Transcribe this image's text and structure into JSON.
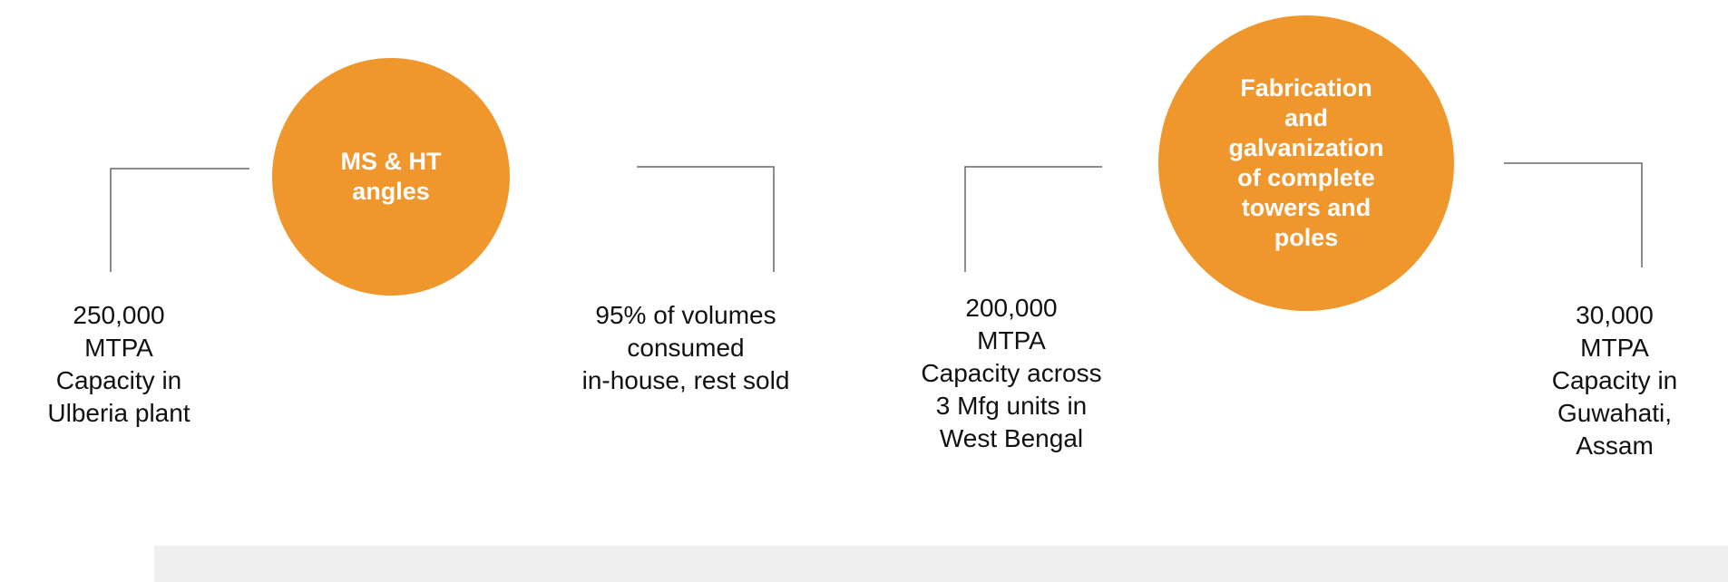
{
  "items": [
    {
      "circle": [
        "MS & HT",
        "angles"
      ],
      "left": [
        "250,000",
        "MTPA",
        "Capacity in",
        "Ulberia plant"
      ],
      "right": [
        "95% of volumes",
        "consumed",
        "in-house, rest sold"
      ]
    },
    {
      "circle": [
        "Fabrication",
        "and",
        "galvanization",
        "of complete",
        "towers and",
        "poles"
      ],
      "left": [
        "200,000",
        "MTPA",
        "Capacity across",
        "3 Mfg units in",
        "West Bengal"
      ],
      "right": [
        "30,000",
        "MTPA",
        "Capacity in",
        "Guwahati,",
        "Assam"
      ]
    }
  ]
}
